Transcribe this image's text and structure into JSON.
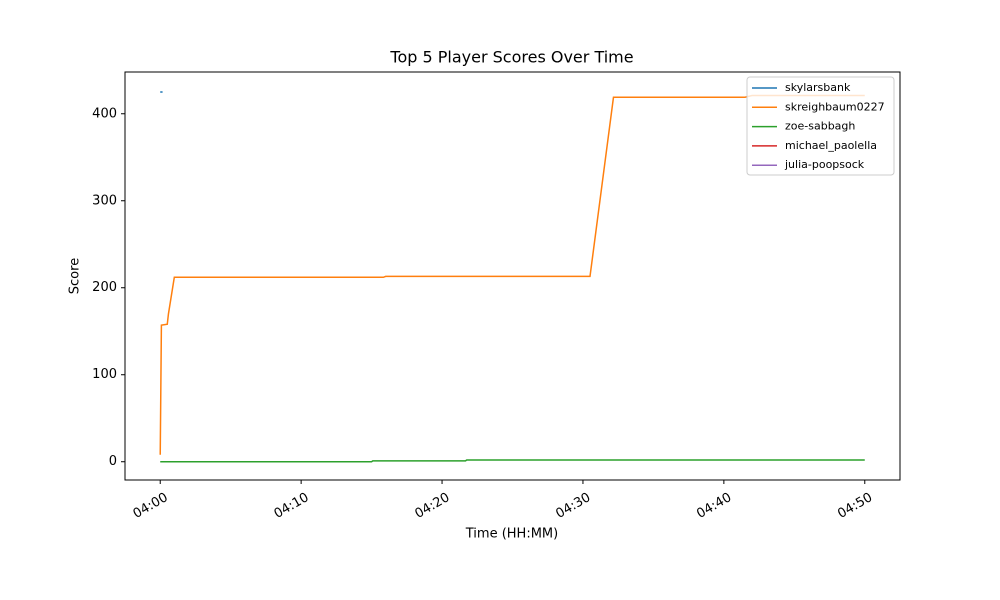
{
  "chart_data": {
    "type": "line",
    "title": "Top 5 Player Scores Over Time",
    "x_label": "Time (HH:MM)",
    "y_label": "Score",
    "xlim": [
      "03:57:30",
      "04:52:30"
    ],
    "xticks": [
      "04:00",
      "04:10",
      "04:20",
      "04:30",
      "04:40",
      "04:50"
    ],
    "ylim": [
      -21,
      448
    ],
    "yticks": [
      0,
      100,
      200,
      300,
      400
    ],
    "legend": "upper right",
    "series": [
      {
        "name": "skylarsbank",
        "color": "#1f77b4",
        "x": [
          "04:00:00",
          "04:00:10"
        ],
        "values": [
          425,
          425
        ]
      },
      {
        "name": "skreighbaum0227",
        "color": "#ff7f0e",
        "x": [
          "04:00:00",
          "04:00:05",
          "04:00:30",
          "04:00:35",
          "04:01:00",
          "04:15:50",
          "04:16:00",
          "04:30:30",
          "04:32:10",
          "04:41:30",
          "04:42:00",
          "04:50:00"
        ],
        "values": [
          8,
          157,
          158,
          170,
          212,
          212,
          213,
          213,
          419,
          419,
          421,
          421
        ]
      },
      {
        "name": "zoe-sabbagh",
        "color": "#2ca02c",
        "x": [
          "04:00:00",
          "04:15:00",
          "04:15:05",
          "04:21:40",
          "04:21:45",
          "04:50:00"
        ],
        "values": [
          0,
          0,
          1,
          1,
          2,
          2
        ]
      },
      {
        "name": "michael_paolella",
        "color": "#d62728",
        "x": [],
        "values": []
      },
      {
        "name": "julia-poopsock",
        "color": "#9467bd",
        "x": [],
        "values": []
      }
    ]
  }
}
